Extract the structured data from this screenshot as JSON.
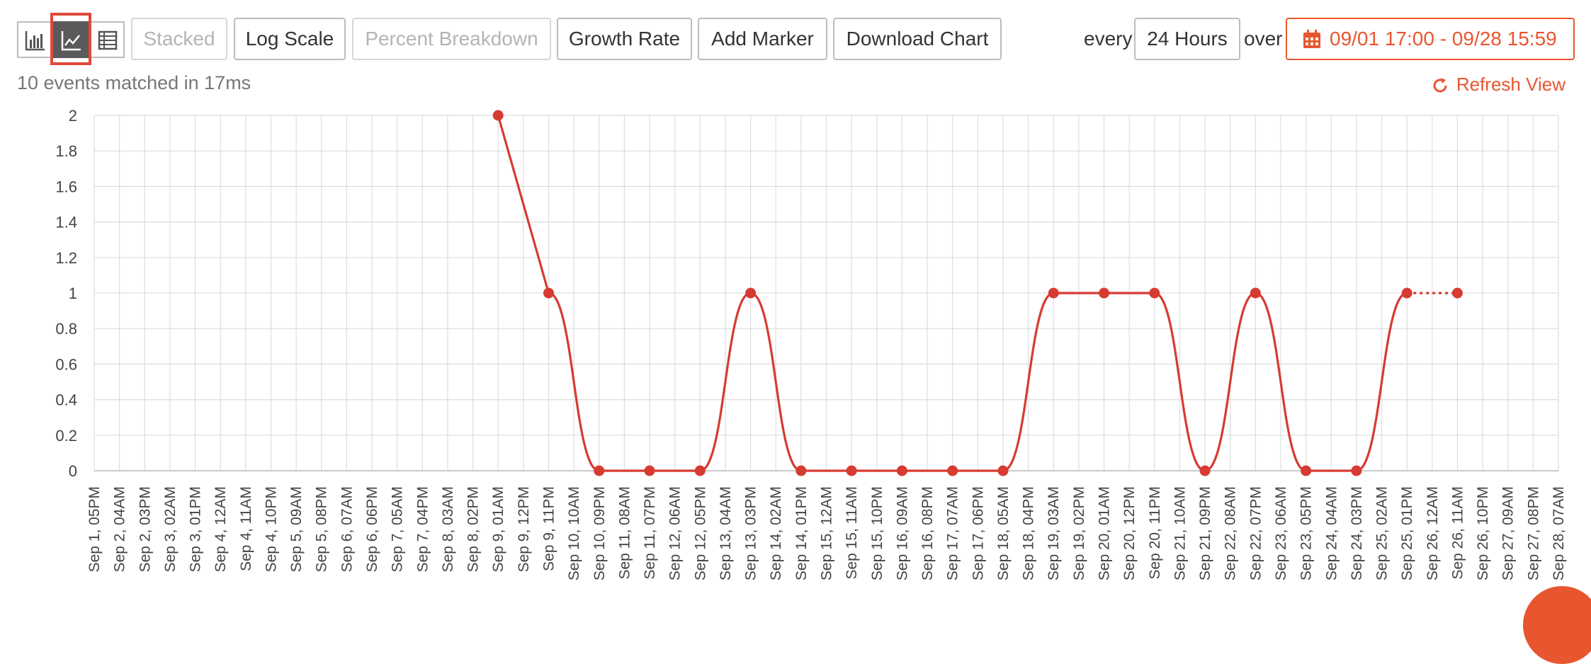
{
  "toolbar": {
    "view_buttons": [
      {
        "name": "bar-chart-view",
        "icon": "bar-chart-icon",
        "active": false
      },
      {
        "name": "line-chart-view",
        "icon": "line-chart-icon",
        "active": true
      },
      {
        "name": "table-view",
        "icon": "table-icon",
        "active": false
      }
    ],
    "stacked_label": "Stacked",
    "log_scale_label": "Log Scale",
    "percent_label": "Percent Breakdown",
    "growth_label": "Growth Rate",
    "marker_label": "Add Marker",
    "download_label": "Download Chart",
    "every_label": "every",
    "interval_value": "24 Hours",
    "over_label": "over",
    "date_range": "09/01 17:00 - 09/28 15:59"
  },
  "status_text": "10 events matched in 17ms",
  "refresh_label": "Refresh View",
  "colors": {
    "accent": "#e8562f",
    "series": "#d63b32",
    "grid": "#dddddd",
    "highlight": "#e0493a"
  },
  "chart_data": {
    "type": "line",
    "title": "",
    "xlabel": "",
    "ylabel": "",
    "ylim": [
      0,
      2
    ],
    "yticks": [
      "0",
      "0.2",
      "0.4",
      "0.6",
      "0.8",
      "1",
      "1.2",
      "1.4",
      "1.6",
      "1.8",
      "2"
    ],
    "grid": true,
    "x": [
      "Sep 1, 05PM",
      "Sep 2, 04AM",
      "Sep 2, 03PM",
      "Sep 3, 02AM",
      "Sep 3, 01PM",
      "Sep 4, 12AM",
      "Sep 4, 11AM",
      "Sep 4, 10PM",
      "Sep 5, 09AM",
      "Sep 5, 08PM",
      "Sep 6, 07AM",
      "Sep 6, 06PM",
      "Sep 7, 05AM",
      "Sep 7, 04PM",
      "Sep 8, 03AM",
      "Sep 8, 02PM",
      "Sep 9, 01AM",
      "Sep 9, 12PM",
      "Sep 9, 11PM",
      "Sep 10, 10AM",
      "Sep 10, 09PM",
      "Sep 11, 08AM",
      "Sep 11, 07PM",
      "Sep 12, 06AM",
      "Sep 12, 05PM",
      "Sep 13, 04AM",
      "Sep 13, 03PM",
      "Sep 14, 02AM",
      "Sep 14, 01PM",
      "Sep 15, 12AM",
      "Sep 15, 11AM",
      "Sep 15, 10PM",
      "Sep 16, 09AM",
      "Sep 16, 08PM",
      "Sep 17, 07AM",
      "Sep 17, 06PM",
      "Sep 18, 05AM",
      "Sep 18, 04PM",
      "Sep 19, 03AM",
      "Sep 19, 02PM",
      "Sep 20, 01AM",
      "Sep 20, 12PM",
      "Sep 20, 11PM",
      "Sep 21, 10AM",
      "Sep 21, 09PM",
      "Sep 22, 08AM",
      "Sep 22, 07PM",
      "Sep 23, 06AM",
      "Sep 23, 05PM",
      "Sep 24, 04AM",
      "Sep 24, 03PM",
      "Sep 25, 02AM",
      "Sep 25, 01PM",
      "Sep 26, 12AM",
      "Sep 26, 11AM",
      "Sep 26, 10PM",
      "Sep 27, 09AM",
      "Sep 27, 08PM",
      "Sep 28, 07AM"
    ],
    "series": [
      {
        "points": [
          {
            "x": "Sep 9, 01AM",
            "y": 2
          },
          {
            "x": "Sep 9, 11PM",
            "y": 1
          },
          {
            "x": "Sep 10, 09PM",
            "y": 0
          },
          {
            "x": "Sep 11, 07PM",
            "y": 0
          },
          {
            "x": "Sep 12, 05PM",
            "y": 0
          },
          {
            "x": "Sep 13, 03PM",
            "y": 1
          },
          {
            "x": "Sep 14, 01PM",
            "y": 0
          },
          {
            "x": "Sep 15, 11AM",
            "y": 0
          },
          {
            "x": "Sep 16, 09AM",
            "y": 0
          },
          {
            "x": "Sep 17, 07AM",
            "y": 0
          },
          {
            "x": "Sep 18, 05AM",
            "y": 0
          },
          {
            "x": "Sep 19, 03AM",
            "y": 1
          },
          {
            "x": "Sep 20, 01AM",
            "y": 1
          },
          {
            "x": "Sep 20, 11PM",
            "y": 1
          },
          {
            "x": "Sep 21, 09PM",
            "y": 0
          },
          {
            "x": "Sep 22, 07PM",
            "y": 1
          },
          {
            "x": "Sep 23, 05PM",
            "y": 0
          },
          {
            "x": "Sep 24, 03PM",
            "y": 0
          },
          {
            "x": "Sep 25, 01PM",
            "y": 1
          },
          {
            "x": "Sep 26, 11AM",
            "y": 1
          }
        ],
        "last_segment_dotted": true
      }
    ]
  }
}
